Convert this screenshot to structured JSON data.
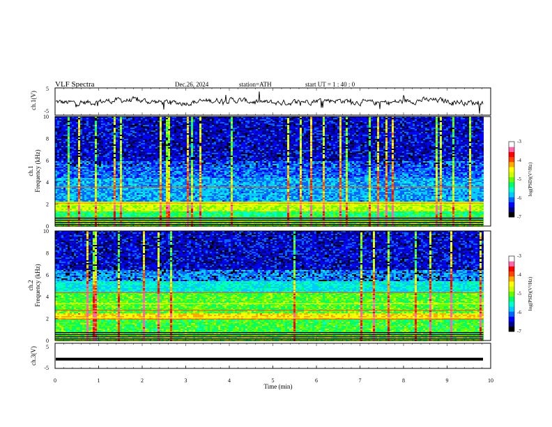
{
  "header": {
    "title": "VLF  Spectra",
    "date": "Dec.26, 2024",
    "station": "station=ATH",
    "start": "start  UT  =    1 : 40 : 0"
  },
  "chart_data": [
    {
      "type": "line",
      "name": "ch1-waveform",
      "ylabel": "ch.1(V)",
      "ylim": [
        -5,
        5
      ],
      "yticks": [
        "5",
        "-5"
      ],
      "approx_level": 0,
      "color": "#000000"
    },
    {
      "type": "heatmap",
      "name": "ch1-spectrogram",
      "ylabel_line1": "ch.1",
      "ylabel_line2": "Frequency (kHz)",
      "ylim": [
        0,
        10
      ],
      "yticks": [
        "0",
        "2",
        "4",
        "6",
        "8",
        "10"
      ],
      "colorbar": {
        "label": "log(PSD)(V²/Hz)",
        "ticks": [
          "-3",
          "-4",
          "-5",
          "-6",
          "-7"
        ],
        "range": [
          -7,
          -3
        ]
      }
    },
    {
      "type": "heatmap",
      "name": "ch2-spectrogram",
      "ylabel_line1": "ch.2",
      "ylabel_line2": "Frequency (kHz)",
      "ylim": [
        0,
        10
      ],
      "yticks": [
        "0",
        "2",
        "4",
        "6",
        "8",
        "10"
      ],
      "colorbar": {
        "label": "log(PSD)(V²/Hz)",
        "ticks": [
          "-3",
          "-4",
          "-5",
          "-6",
          "-7"
        ],
        "range": [
          -7,
          -3
        ]
      }
    },
    {
      "type": "line",
      "name": "ch3-waveform",
      "ylabel": "ch.3(V)",
      "ylim": [
        -5,
        5
      ],
      "yticks": [
        "5",
        "-5"
      ],
      "approx_level": -1.3,
      "color": "#000000"
    }
  ],
  "xaxis": {
    "label": "Time  (min)",
    "ticks": [
      "0",
      "1",
      "2",
      "3",
      "4",
      "5",
      "6",
      "7",
      "8",
      "9",
      "10"
    ],
    "range": [
      0,
      10
    ],
    "data_end": 9.83
  },
  "colormap": [
    "#000000",
    "#00008b",
    "#0000ff",
    "#0066ff",
    "#00ccff",
    "#00ffcc",
    "#00ff66",
    "#66ff00",
    "#ccff00",
    "#ffff00",
    "#ffaa00",
    "#ff4400",
    "#ff0000",
    "#ff66aa",
    "#ffffff"
  ]
}
